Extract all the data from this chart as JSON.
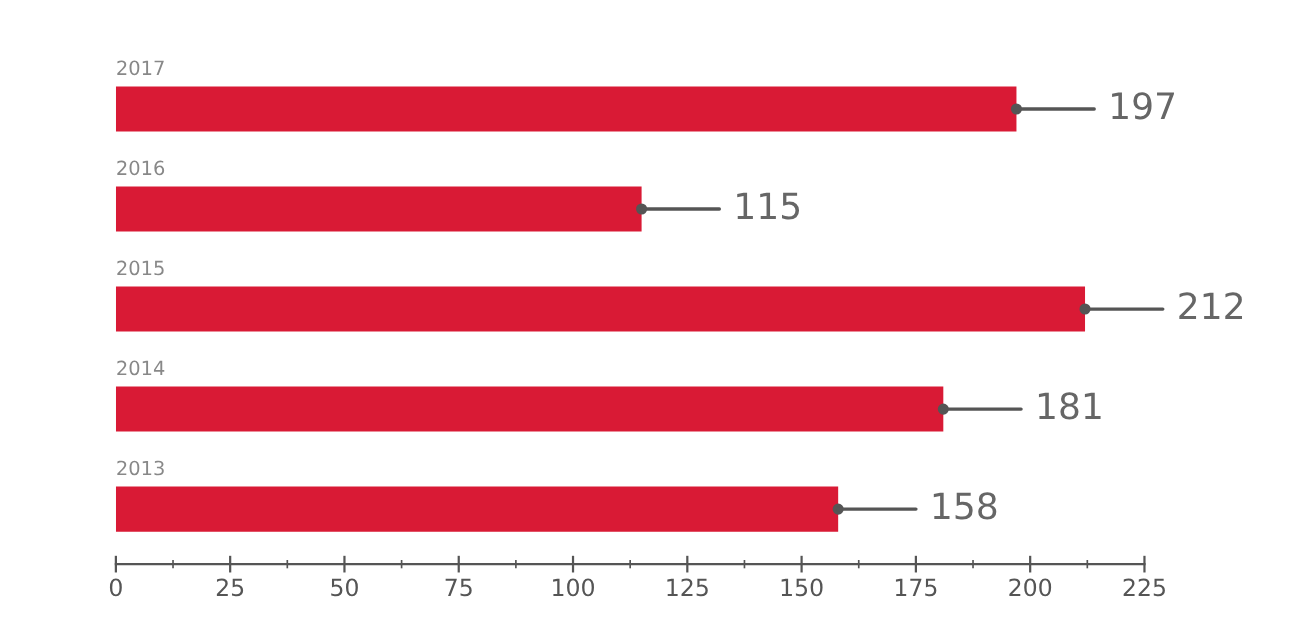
{
  "chart_data": {
    "type": "bar",
    "orientation": "horizontal",
    "categories": [
      "2017",
      "2016",
      "2015",
      "2014",
      "2013"
    ],
    "values": [
      197,
      115,
      212,
      181,
      158
    ],
    "color": "#d91a35",
    "xlim": [
      0,
      225
    ],
    "xticks": [
      0,
      25,
      50,
      75,
      100,
      125,
      150,
      175,
      200,
      225
    ],
    "data_labels": true,
    "grid": false,
    "legend": false
  }
}
